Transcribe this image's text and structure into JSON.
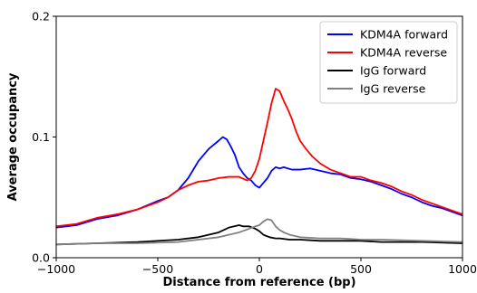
{
  "chart_data": {
    "type": "line",
    "xlabel": "Distance from reference (bp)",
    "ylabel": "Average occupancy",
    "xlim": [
      -1000,
      1000
    ],
    "ylim": [
      0,
      0.2
    ],
    "xticks": [
      -1000,
      -500,
      0,
      500,
      1000
    ],
    "xtick_labels": [
      "−1000",
      "−500",
      "0",
      "500",
      "1000"
    ],
    "yticks": [
      0,
      0.1,
      0.2
    ],
    "ytick_labels": [
      "0.0",
      "0.1",
      "0.2"
    ],
    "grid": false,
    "legend": "top-right",
    "series": [
      {
        "name": "KDM4A forward",
        "color": "#0000ff",
        "x": [
          -1000,
          -900,
          -800,
          -700,
          -600,
          -500,
          -450,
          -400,
          -350,
          -300,
          -250,
          -200,
          -180,
          -160,
          -140,
          -120,
          -100,
          -80,
          -60,
          -40,
          -20,
          0,
          20,
          40,
          60,
          80,
          100,
          120,
          140,
          160,
          200,
          250,
          300,
          350,
          400,
          450,
          500,
          550,
          600,
          650,
          700,
          750,
          800,
          850,
          900,
          950,
          1000
        ],
        "y": [
          0.025,
          0.027,
          0.032,
          0.035,
          0.04,
          0.047,
          0.05,
          0.056,
          0.066,
          0.08,
          0.09,
          0.097,
          0.1,
          0.098,
          0.092,
          0.085,
          0.075,
          0.07,
          0.066,
          0.064,
          0.06,
          0.058,
          0.062,
          0.066,
          0.072,
          0.075,
          0.074,
          0.075,
          0.074,
          0.073,
          0.073,
          0.074,
          0.072,
          0.07,
          0.069,
          0.066,
          0.065,
          0.063,
          0.06,
          0.057,
          0.053,
          0.05,
          0.046,
          0.043,
          0.041,
          0.038,
          0.035
        ]
      },
      {
        "name": "KDM4A reverse",
        "color": "#ff0000",
        "x": [
          -1000,
          -900,
          -800,
          -700,
          -600,
          -500,
          -450,
          -400,
          -350,
          -300,
          -250,
          -200,
          -150,
          -100,
          -60,
          -40,
          -20,
          0,
          20,
          40,
          60,
          80,
          100,
          120,
          140,
          160,
          180,
          200,
          230,
          260,
          300,
          350,
          400,
          450,
          500,
          550,
          600,
          650,
          700,
          750,
          800,
          850,
          900,
          950,
          1000
        ],
        "y": [
          0.026,
          0.028,
          0.033,
          0.036,
          0.04,
          0.046,
          0.05,
          0.056,
          0.06,
          0.063,
          0.064,
          0.066,
          0.067,
          0.067,
          0.064,
          0.066,
          0.072,
          0.082,
          0.097,
          0.112,
          0.128,
          0.14,
          0.138,
          0.13,
          0.123,
          0.115,
          0.105,
          0.097,
          0.09,
          0.084,
          0.078,
          0.073,
          0.07,
          0.067,
          0.067,
          0.064,
          0.062,
          0.059,
          0.055,
          0.052,
          0.048,
          0.045,
          0.042,
          0.039,
          0.036
        ]
      },
      {
        "name": "IgG forward",
        "color": "#000000",
        "x": [
          -1000,
          -800,
          -600,
          -400,
          -300,
          -250,
          -200,
          -150,
          -100,
          -80,
          -50,
          -20,
          0,
          20,
          50,
          80,
          100,
          150,
          200,
          300,
          400,
          500,
          600,
          800,
          1000
        ],
        "y": [
          0.011,
          0.012,
          0.013,
          0.015,
          0.017,
          0.019,
          0.021,
          0.025,
          0.027,
          0.026,
          0.026,
          0.024,
          0.022,
          0.019,
          0.017,
          0.016,
          0.016,
          0.015,
          0.015,
          0.014,
          0.014,
          0.014,
          0.013,
          0.013,
          0.012
        ]
      },
      {
        "name": "IgG reverse",
        "color": "#808080",
        "x": [
          -1000,
          -800,
          -600,
          -400,
          -300,
          -200,
          -150,
          -100,
          -50,
          -20,
          0,
          20,
          40,
          60,
          80,
          100,
          120,
          150,
          200,
          300,
          400,
          500,
          600,
          800,
          1000
        ],
        "y": [
          0.011,
          0.012,
          0.012,
          0.013,
          0.015,
          0.017,
          0.019,
          0.021,
          0.024,
          0.026,
          0.027,
          0.03,
          0.032,
          0.031,
          0.026,
          0.023,
          0.021,
          0.019,
          0.017,
          0.016,
          0.016,
          0.015,
          0.015,
          0.014,
          0.013
        ]
      }
    ]
  }
}
